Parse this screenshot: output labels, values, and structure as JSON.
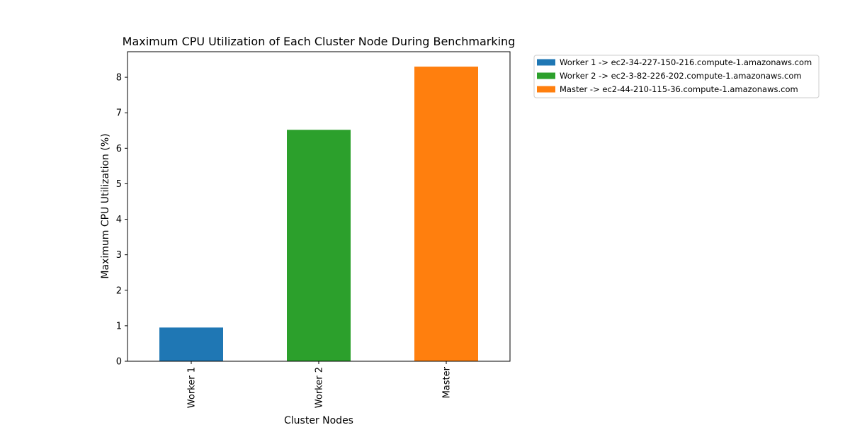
{
  "chart_data": {
    "type": "bar",
    "title": "Maximum CPU Utilization of Each Cluster Node During Benchmarking",
    "xlabel": "Cluster Nodes",
    "ylabel": "Maximum CPU Utilization (%)",
    "categories": [
      "Worker 1",
      "Worker 2",
      "Master"
    ],
    "values": [
      0.95,
      6.52,
      8.3
    ],
    "colors": [
      "#1f77b4",
      "#2ca02c",
      "#ff7f0e"
    ],
    "ylim": [
      0,
      8.72
    ],
    "yticks": [
      0,
      1,
      2,
      3,
      4,
      5,
      6,
      7,
      8
    ],
    "grid": false,
    "legend_position": "outside-top-right",
    "legend": [
      {
        "label": "Worker 1 -> ec2-34-227-150-216.compute-1.amazonaws.com",
        "color": "#1f77b4"
      },
      {
        "label": "Worker 2 -> ec2-3-82-226-202.compute-1.amazonaws.com",
        "color": "#2ca02c"
      },
      {
        "label": "Master -> ec2-44-210-115-36.compute-1.amazonaws.com",
        "color": "#ff7f0e"
      }
    ]
  }
}
